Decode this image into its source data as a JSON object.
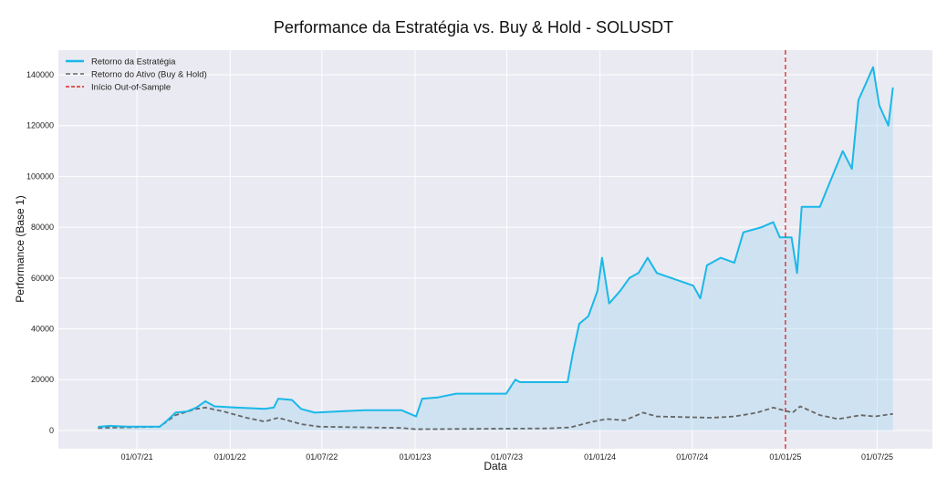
{
  "chart_data": {
    "type": "line",
    "title": "Performance da Estratégia vs. Buy & Hold - SOLUSDT",
    "xlabel": "Data",
    "ylabel": "Performance (Base 1)",
    "xlim": [
      "2021-01-27",
      "2025-10-18"
    ],
    "ylim": [
      -7200,
      149700
    ],
    "grid": true,
    "legend_position": "top-left",
    "x_ticks": [
      {
        "date": "2021-07-01",
        "label": "01/07/21"
      },
      {
        "date": "2022-01-01",
        "label": "01/01/22"
      },
      {
        "date": "2022-07-01",
        "label": "01/07/22"
      },
      {
        "date": "2023-01-01",
        "label": "01/01/23"
      },
      {
        "date": "2023-07-01",
        "label": "01/07/23"
      },
      {
        "date": "2024-01-01",
        "label": "01/01/24"
      },
      {
        "date": "2024-07-01",
        "label": "01/07/24"
      },
      {
        "date": "2025-01-01",
        "label": "01/01/25"
      },
      {
        "date": "2025-07-01",
        "label": "01/07/25"
      }
    ],
    "y_ticks": [
      {
        "value": 0,
        "label": "0"
      },
      {
        "value": 20000,
        "label": "20000"
      },
      {
        "value": 40000,
        "label": "40000"
      },
      {
        "value": 60000,
        "label": "60000"
      },
      {
        "value": 80000,
        "label": "80000"
      },
      {
        "value": 100000,
        "label": "100000"
      },
      {
        "value": 120000,
        "label": "120000"
      },
      {
        "value": 140000,
        "label": "140000"
      }
    ],
    "series": [
      {
        "name": "Retorno da Estratégia",
        "color": "#1ab8e8",
        "style": "solid",
        "fill": true,
        "points": [
          [
            "2021-04-15",
            1400
          ],
          [
            "2021-05-08",
            1800
          ],
          [
            "2021-06-13",
            1500
          ],
          [
            "2021-08-15",
            1500
          ],
          [
            "2021-09-02",
            4500
          ],
          [
            "2021-09-15",
            7000
          ],
          [
            "2021-10-08",
            7500
          ],
          [
            "2021-10-26",
            9000
          ],
          [
            "2021-11-13",
            11500
          ],
          [
            "2021-12-01",
            9500
          ],
          [
            "2022-01-15",
            9000
          ],
          [
            "2022-03-10",
            8500
          ],
          [
            "2022-03-28",
            9000
          ],
          [
            "2022-04-06",
            12500
          ],
          [
            "2022-05-03",
            12000
          ],
          [
            "2022-05-21",
            8500
          ],
          [
            "2022-06-17",
            7000
          ],
          [
            "2022-08-01",
            7500
          ],
          [
            "2022-09-24",
            8000
          ],
          [
            "2022-12-05",
            8000
          ],
          [
            "2023-01-03",
            5500
          ],
          [
            "2023-01-15",
            12500
          ],
          [
            "2023-02-15",
            13000
          ],
          [
            "2023-03-23",
            14500
          ],
          [
            "2023-06-30",
            14500
          ],
          [
            "2023-07-18",
            20000
          ],
          [
            "2023-07-27",
            19000
          ],
          [
            "2023-10-29",
            19000
          ],
          [
            "2023-11-08",
            30000
          ],
          [
            "2023-11-21",
            42000
          ],
          [
            "2023-12-09",
            45000
          ],
          [
            "2023-12-27",
            55000
          ],
          [
            "2024-01-05",
            68000
          ],
          [
            "2024-01-19",
            50000
          ],
          [
            "2024-02-10",
            55000
          ],
          [
            "2024-02-28",
            60000
          ],
          [
            "2024-03-17",
            62000
          ],
          [
            "2024-04-04",
            68000
          ],
          [
            "2024-04-22",
            62000
          ],
          [
            "2024-07-03",
            57000
          ],
          [
            "2024-07-17",
            52000
          ],
          [
            "2024-07-30",
            65000
          ],
          [
            "2024-08-26",
            68000
          ],
          [
            "2024-09-22",
            66000
          ],
          [
            "2024-10-10",
            78000
          ],
          [
            "2024-11-15",
            80000
          ],
          [
            "2024-12-08",
            82000
          ],
          [
            "2024-12-21",
            76000
          ],
          [
            "2025-01-13",
            76000
          ],
          [
            "2025-01-24",
            62000
          ],
          [
            "2025-02-02",
            88000
          ],
          [
            "2025-03-10",
            88000
          ],
          [
            "2025-03-24",
            95000
          ],
          [
            "2025-04-24",
            110000
          ],
          [
            "2025-05-12",
            103000
          ],
          [
            "2025-05-25",
            130000
          ],
          [
            "2025-06-23",
            143000
          ],
          [
            "2025-07-05",
            128000
          ],
          [
            "2025-07-23",
            120000
          ],
          [
            "2025-08-01",
            135000
          ]
        ]
      },
      {
        "name": "Retorno do Ativo (Buy & Hold)",
        "color": "#666666",
        "style": "dashed",
        "points": [
          [
            "2021-04-15",
            1000
          ],
          [
            "2021-08-15",
            1500
          ],
          [
            "2021-09-15",
            6000
          ],
          [
            "2021-10-26",
            8500
          ],
          [
            "2021-11-13",
            9000
          ],
          [
            "2021-12-19",
            7500
          ],
          [
            "2022-02-02",
            5000
          ],
          [
            "2022-03-10",
            3500
          ],
          [
            "2022-04-06",
            5000
          ],
          [
            "2022-05-21",
            2500
          ],
          [
            "2022-06-26",
            1500
          ],
          [
            "2022-12-05",
            1000
          ],
          [
            "2023-01-03",
            500
          ],
          [
            "2023-09-19",
            800
          ],
          [
            "2023-11-03",
            1200
          ],
          [
            "2023-12-18",
            3500
          ],
          [
            "2024-01-14",
            4500
          ],
          [
            "2024-02-19",
            4000
          ],
          [
            "2024-03-26",
            7000
          ],
          [
            "2024-04-22",
            5500
          ],
          [
            "2024-08-08",
            5000
          ],
          [
            "2024-09-22",
            5500
          ],
          [
            "2024-11-06",
            7000
          ],
          [
            "2024-12-08",
            9000
          ],
          [
            "2025-01-15",
            7000
          ],
          [
            "2025-01-30",
            9500
          ],
          [
            "2025-03-10",
            6000
          ],
          [
            "2025-04-15",
            4500
          ],
          [
            "2025-05-30",
            6000
          ],
          [
            "2025-06-26",
            5500
          ],
          [
            "2025-08-01",
            6500
          ]
        ]
      }
    ],
    "vlines": [
      {
        "name": "Início Out-of-Sample",
        "date": "2025-01-01",
        "color": "#d62728",
        "style": "dashed"
      }
    ]
  }
}
